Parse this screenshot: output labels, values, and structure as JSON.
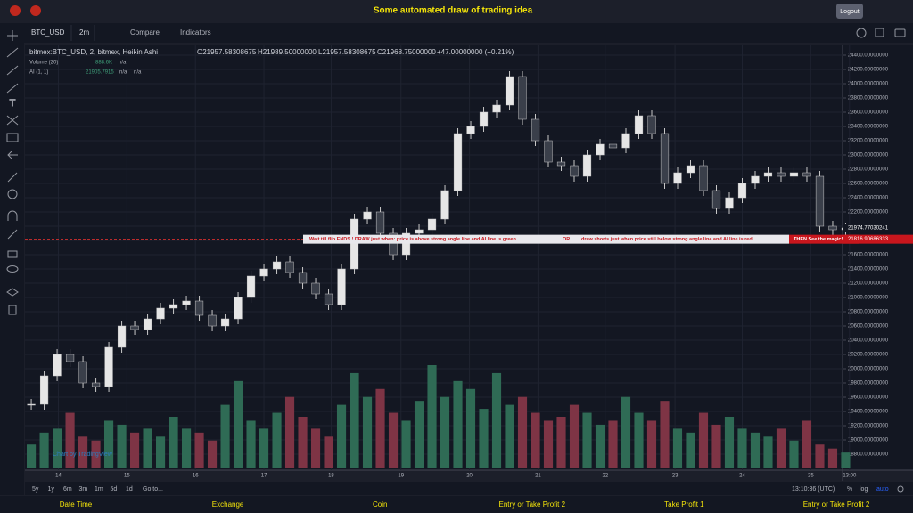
{
  "header": {
    "title": "Some automated draw of trading idea",
    "logout": "Logout"
  },
  "toolbar": {
    "symbol": "BTC_USD",
    "interval": "2m",
    "compare": "Compare",
    "indicators": "Indicators"
  },
  "legend": {
    "main": "bitmex:BTC_USD, 2, bitmex, Heikin Ashi",
    "open": "O21957.58308675",
    "high": "H21989.50000000",
    "low": "L21957.58308675",
    "close": "C21968.75000000",
    "change": "+47.00000000 (+0.21%)",
    "volume_name": "Volume (20)",
    "volume_value": "888.6K",
    "volume_na": "n/a",
    "ai_name": "AI (1, 1)",
    "ai_value": "21905.7915",
    "ai_na1": "n/a",
    "ai_na2": "n/a"
  },
  "annotation": {
    "text1": "Wait till flip ENDS !   DRAW just when:  price is above strong angle line and AI line is green",
    "or": "OR",
    "text2": "draw shorts just when price still below strong angle line and AI line is red",
    "text3": "THEN See the magic!!"
  },
  "watermark": "Chart by TradingView",
  "bottom_bar": {
    "ranges": [
      "5y",
      "1y",
      "6m",
      "3m",
      "1m",
      "5d",
      "1d"
    ],
    "goto": "Go to...",
    "time": "13:10:36 (UTC)",
    "percent": "%",
    "log": "log",
    "auto": "auto"
  },
  "footer": [
    "Date Time",
    "Exchange",
    "Coin",
    "Entry or Take Profit 2",
    "Take Profit 1",
    "Entry or Take Profit 2"
  ],
  "chart_data": {
    "type": "candlestick",
    "closes": [
      19500,
      19900,
      20200,
      20100,
      19800,
      19750,
      20300,
      20600,
      20550,
      20700,
      20850,
      20900,
      20950,
      20750,
      20600,
      20700,
      21000,
      21300,
      21400,
      21500,
      21350,
      21200,
      21050,
      20900,
      21400,
      22100,
      22200,
      21900,
      21600,
      21900,
      21950,
      22100,
      22500,
      23300,
      23400,
      23600,
      23700,
      24100,
      23500,
      23200,
      22900,
      22850,
      22700,
      23000,
      23150,
      23100,
      23300,
      23550,
      23300,
      22600,
      22750,
      22850,
      22500,
      22250,
      22400,
      22600,
      22700,
      22750,
      22700,
      22750,
      22700,
      22000,
      21950,
      21975
    ],
    "volumes": [
      300,
      450,
      500,
      700,
      400,
      350,
      600,
      550,
      450,
      500,
      400,
      650,
      500,
      450,
      350,
      800,
      1100,
      600,
      500,
      700,
      900,
      650,
      500,
      400,
      800,
      1200,
      900,
      1000,
      700,
      600,
      850,
      1300,
      900,
      1100,
      1000,
      750,
      1200,
      800,
      900,
      700,
      600,
      650,
      800,
      700,
      550,
      600,
      900,
      700,
      600,
      850,
      500,
      450,
      700,
      550,
      650,
      500,
      450,
      400,
      500,
      350,
      600,
      300,
      250,
      200
    ],
    "up_color": "#e6e6e6",
    "down_color": "#3a3f4a",
    "volume_up_color": "#2f6b55",
    "volume_down_color": "#7e3445",
    "xlim": [
      -0.35,
      63.45
    ],
    "xticks": [
      {
        "value": 2.1,
        "label": "14"
      },
      {
        "value": 7.4,
        "label": "15"
      },
      {
        "value": 12.7,
        "label": "16"
      },
      {
        "value": 18,
        "label": "17"
      },
      {
        "value": 23.2,
        "label": "18"
      },
      {
        "value": 28.6,
        "label": "19"
      },
      {
        "value": 33.9,
        "label": "20"
      },
      {
        "value": 39.2,
        "label": "21"
      },
      {
        "value": 44.4,
        "label": "22"
      },
      {
        "value": 49.8,
        "label": "23"
      },
      {
        "value": 55,
        "label": "24"
      },
      {
        "value": 60.3,
        "label": "25"
      },
      {
        "value": 63.3,
        "label": "13:00"
      }
    ],
    "ylim": [
      18575,
      24550
    ],
    "yticks": [
      {
        "value": 18800,
        "label": "18800.00000000"
      },
      {
        "value": 19000,
        "label": "19000.00000000"
      },
      {
        "value": 19200,
        "label": "19200.00000000"
      },
      {
        "value": 19400,
        "label": "19400.00000000"
      },
      {
        "value": 19600,
        "label": "19600.00000000"
      },
      {
        "value": 19800,
        "label": "19800.00000000"
      },
      {
        "value": 20000,
        "label": "20000.00000000"
      },
      {
        "value": 20200,
        "label": "20200.00000000"
      },
      {
        "value": 20400,
        "label": "20400.00000000"
      },
      {
        "value": 20600,
        "label": "20600.00000000"
      },
      {
        "value": 20800,
        "label": "20800.00000000"
      },
      {
        "value": 21000,
        "label": "21000.00000000"
      },
      {
        "value": 21200,
        "label": "21200.00000000"
      },
      {
        "value": 21400,
        "label": "21400.00000000"
      },
      {
        "value": 21600,
        "label": "21600.00000000"
      },
      {
        "value": 21800,
        "label": "21800.00000000"
      },
      {
        "value": 22000,
        "label": "22000.00000000"
      },
      {
        "value": 22200,
        "label": "22200.00000000"
      },
      {
        "value": 22400,
        "label": "22400.00000000"
      },
      {
        "value": 22600,
        "label": "22600.00000000"
      },
      {
        "value": 22800,
        "label": "22800.00000000"
      },
      {
        "value": 23000,
        "label": "23000.00000000"
      },
      {
        "value": 23200,
        "label": "23200.00000000"
      },
      {
        "value": 23400,
        "label": "23400.00000000"
      },
      {
        "value": 23600,
        "label": "23600.00000000"
      },
      {
        "value": 23800,
        "label": "23800.00000000"
      },
      {
        "value": 24000,
        "label": "24000.00000000"
      },
      {
        "value": 24200,
        "label": "24200.00000000"
      },
      {
        "value": 24400,
        "label": "24400.00000000"
      }
    ],
    "last_price": 21974.77030241,
    "line_price": 21816.90686333,
    "grid": true
  }
}
